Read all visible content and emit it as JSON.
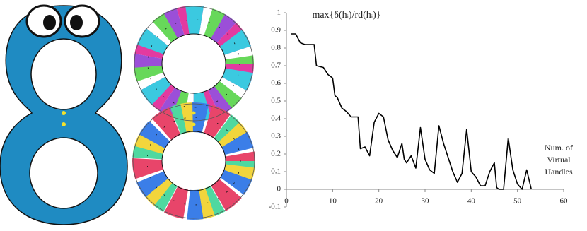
{
  "chart_data": {
    "type": "line",
    "title": "max{δ(hᵢ)/rd(hᵢ)}",
    "x_label": [
      "Num. of",
      "Virtual",
      "Handles"
    ],
    "x": [
      1,
      2,
      3,
      4,
      5,
      6,
      6.5,
      8,
      9,
      10,
      10.5,
      11,
      12,
      13,
      14,
      15.5,
      16,
      17,
      18,
      19,
      20,
      21,
      22,
      23,
      24,
      25,
      25.5,
      26,
      27,
      28,
      29,
      30,
      31,
      32,
      33,
      34,
      35,
      36,
      37,
      38,
      39,
      40,
      41,
      42,
      43,
      44,
      45,
      45.5,
      46,
      47,
      48,
      49,
      50,
      51,
      52,
      53
    ],
    "values": [
      0.88,
      0.88,
      0.83,
      0.82,
      0.82,
      0.82,
      0.7,
      0.69,
      0.65,
      0.63,
      0.53,
      0.52,
      0.46,
      0.44,
      0.41,
      0.41,
      0.23,
      0.24,
      0.19,
      0.38,
      0.43,
      0.41,
      0.28,
      0.22,
      0.18,
      0.26,
      0.17,
      0.15,
      0.19,
      0.12,
      0.35,
      0.17,
      0.11,
      0.09,
      0.36,
      0.26,
      0.18,
      0.1,
      0.04,
      0.09,
      0.34,
      0.1,
      0.07,
      0.02,
      0.02,
      0.1,
      0.15,
      0.01,
      0,
      0,
      0.29,
      0.11,
      0.03,
      0,
      0.11,
      0
    ],
    "color": "#000000",
    "xlim": [
      0,
      60
    ],
    "xticks": [
      0,
      10,
      20,
      30,
      40,
      50,
      60
    ],
    "ylim": [
      -0.1,
      1
    ],
    "yticks": [
      -0.1,
      0,
      0.1,
      0.2,
      0.3,
      0.4,
      0.5,
      0.6,
      0.7,
      0.8,
      0.9,
      1
    ]
  }
}
